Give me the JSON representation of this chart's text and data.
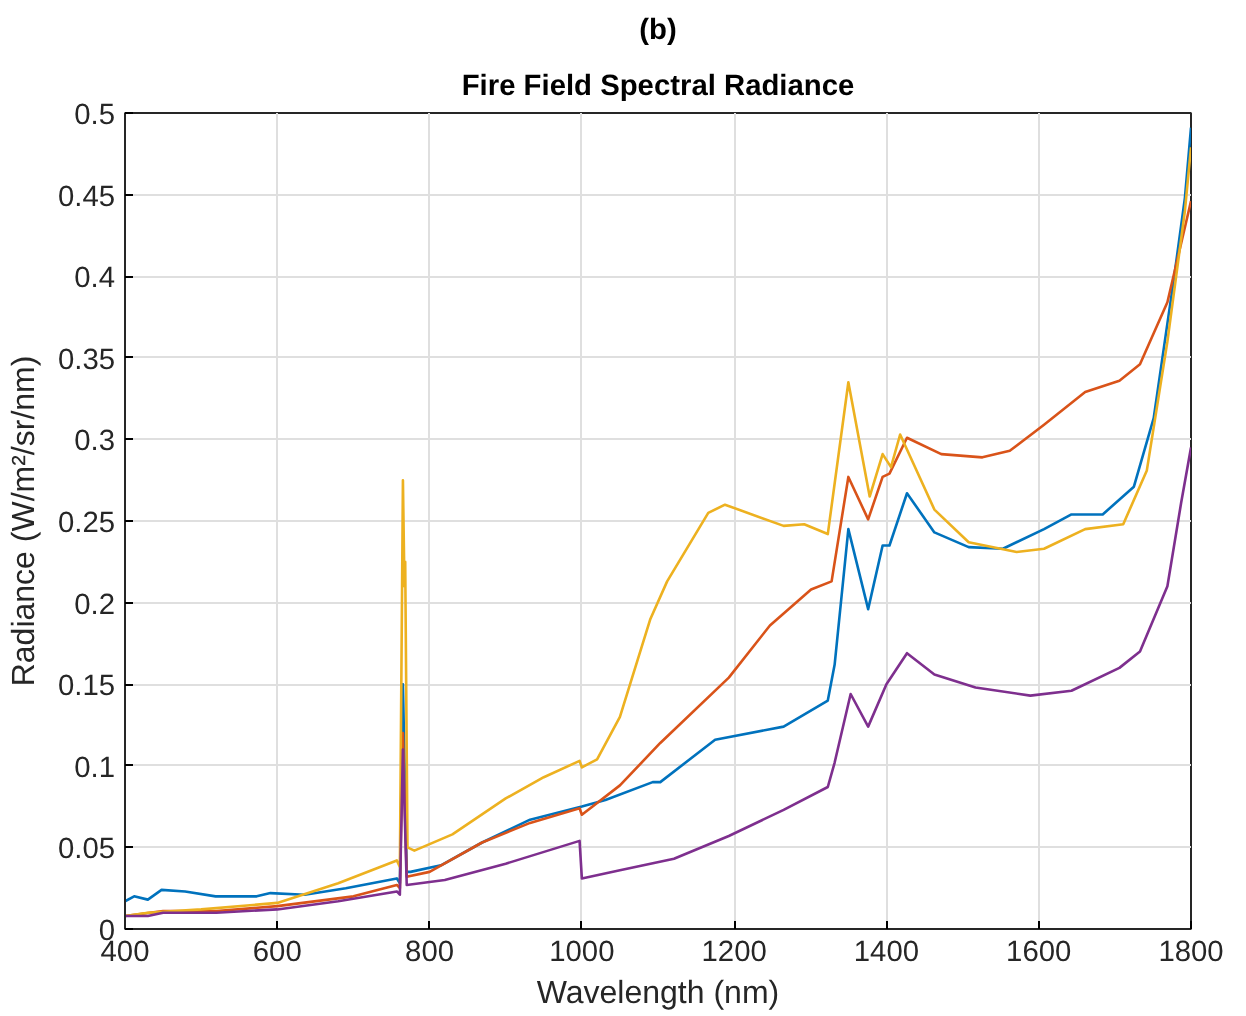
{
  "chart_data": {
    "type": "line",
    "title": "(b)",
    "subtitle": "Fire Field Spectral Radiance",
    "xlabel": "Wavelength (nm)",
    "ylabel": "Radiance (W/m²/sr/nm)",
    "xlim": [
      400,
      1800
    ],
    "ylim": [
      0,
      0.5
    ],
    "xticks": [
      400,
      600,
      800,
      1000,
      1200,
      1400,
      1600,
      1800
    ],
    "yticks": [
      0,
      0.05,
      0.1,
      0.15,
      0.2,
      0.25,
      0.3,
      0.35,
      0.4,
      0.45,
      0.5
    ],
    "grid": true,
    "line_style": "solid",
    "series": [
      {
        "color": "#0072bd",
        "x": [
          400,
          412,
          430,
          448,
          479,
          519,
          573,
          591,
          636,
          690,
          757,
          761,
          765,
          770,
          775,
          815,
          869,
          932,
          1000,
          1031,
          1093,
          1103,
          1175,
          1265,
          1323,
          1332,
          1350,
          1376,
          1395,
          1404,
          1427,
          1463,
          1508,
          1553,
          1607,
          1643,
          1684,
          1725,
          1751,
          1778,
          1792,
          1800
        ],
        "values": [
          0.017,
          0.02,
          0.018,
          0.024,
          0.023,
          0.02,
          0.02,
          0.022,
          0.021,
          0.025,
          0.031,
          0.028,
          0.15,
          0.035,
          0.035,
          0.039,
          0.053,
          0.067,
          0.075,
          0.079,
          0.09,
          0.09,
          0.116,
          0.124,
          0.14,
          0.162,
          0.245,
          0.196,
          0.235,
          0.235,
          0.267,
          0.243,
          0.234,
          0.233,
          0.245,
          0.254,
          0.254,
          0.271,
          0.313,
          0.4,
          0.448,
          0.491
        ]
      },
      {
        "color": "#d95319",
        "x": [
          400,
          450,
          520,
          600,
          700,
          757,
          761,
          765,
          770,
          800,
          869,
          932,
          997,
          1000,
          1050,
          1103,
          1193,
          1247,
          1301,
          1328,
          1350,
          1376,
          1395,
          1404,
          1427,
          1472,
          1526,
          1562,
          1607,
          1661,
          1706,
          1733,
          1769,
          1795,
          1800
        ],
        "values": [
          0.008,
          0.011,
          0.011,
          0.014,
          0.02,
          0.027,
          0.025,
          0.12,
          0.032,
          0.035,
          0.053,
          0.065,
          0.074,
          0.07,
          0.088,
          0.114,
          0.154,
          0.186,
          0.208,
          0.213,
          0.277,
          0.251,
          0.277,
          0.279,
          0.301,
          0.291,
          0.289,
          0.293,
          0.309,
          0.329,
          0.336,
          0.346,
          0.384,
          0.436,
          0.446
        ]
      },
      {
        "color": "#edb120",
        "x": [
          400,
          430,
          500,
          600,
          680,
          757,
          761,
          765,
          767,
          768,
          771,
          780,
          830,
          900,
          950,
          997,
          1000,
          1020,
          1050,
          1090,
          1112,
          1166,
          1188,
          1265,
          1292,
          1323,
          1350,
          1378,
          1395,
          1406,
          1418,
          1463,
          1508,
          1571,
          1607,
          1661,
          1711,
          1742,
          1769,
          1792,
          1800
        ],
        "values": [
          0.008,
          0.01,
          0.012,
          0.016,
          0.028,
          0.042,
          0.038,
          0.275,
          0.21,
          0.225,
          0.05,
          0.048,
          0.058,
          0.08,
          0.093,
          0.103,
          0.099,
          0.104,
          0.13,
          0.19,
          0.213,
          0.255,
          0.26,
          0.247,
          0.248,
          0.242,
          0.335,
          0.265,
          0.291,
          0.283,
          0.303,
          0.257,
          0.237,
          0.231,
          0.233,
          0.245,
          0.248,
          0.281,
          0.36,
          0.44,
          0.479
        ]
      },
      {
        "color": "#7e2f8e",
        "x": [
          400,
          430,
          450,
          520,
          600,
          680,
          757,
          761,
          765,
          770,
          820,
          900,
          997,
          1000,
          1050,
          1121,
          1193,
          1265,
          1323,
          1332,
          1353,
          1376,
          1400,
          1427,
          1463,
          1517,
          1589,
          1643,
          1706,
          1733,
          1769,
          1787,
          1800
        ],
        "values": [
          0.008,
          0.008,
          0.01,
          0.01,
          0.012,
          0.017,
          0.023,
          0.021,
          0.11,
          0.027,
          0.03,
          0.04,
          0.054,
          0.031,
          0.036,
          0.043,
          0.057,
          0.073,
          0.087,
          0.102,
          0.144,
          0.124,
          0.15,
          0.169,
          0.156,
          0.148,
          0.143,
          0.146,
          0.16,
          0.17,
          0.21,
          0.261,
          0.295
        ]
      }
    ]
  }
}
